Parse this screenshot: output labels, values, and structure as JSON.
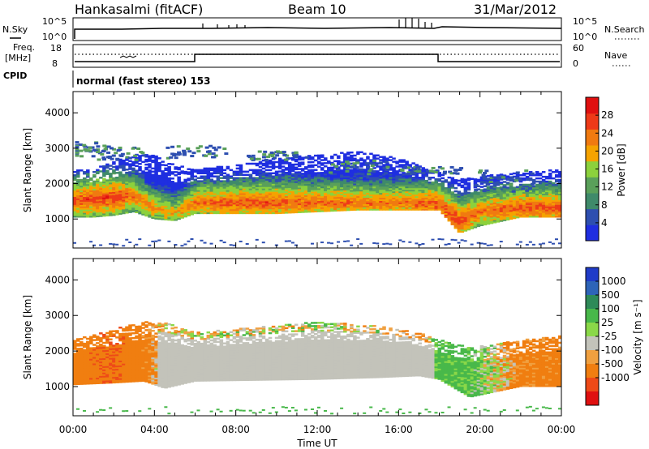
{
  "header": {
    "radar": "Hankasalmi (fitACF)",
    "beam": "Beam 10",
    "date": "31/Mar/2012"
  },
  "top_panels": {
    "nsky_label": "N.Sky",
    "nsky_ticks": [
      "10^5",
      "10^0"
    ],
    "nsearch_label": "N.Search",
    "nsearch_ticks": [
      "10^5",
      "10^0"
    ],
    "freq_label": "Freq.",
    "freq_unit": "[MHz]",
    "freq_ticks": [
      "18",
      "8"
    ],
    "nave_label": "Nave",
    "nave_ticks": [
      "60",
      "0"
    ],
    "cpid_label": "CPID",
    "cpid_text": "normal (fast stereo)  153"
  },
  "colors": {
    "power_scale": [
      "#1f2ee0",
      "#2e4fb0",
      "#3f8a6a",
      "#5aa05a",
      "#8cd13c",
      "#f5a300",
      "#f07a10",
      "#ee3a18",
      "#e01010"
    ],
    "velocity_scale": [
      "#203cc8",
      "#2e64b8",
      "#2e8a58",
      "#48b84a",
      "#8ad848",
      "#c3c3ba",
      "#f0a040",
      "#f07e10",
      "#ee4a18",
      "#e01010"
    ]
  },
  "chart_data": [
    {
      "type": "heatmap",
      "panel": "power",
      "xlabel": "Time UT",
      "ylabel": "Slant Range [km]",
      "x_ticks": [
        "00:00",
        "04:00",
        "08:00",
        "12:00",
        "16:00",
        "20:00",
        "00:00"
      ],
      "x_range_hours": [
        0,
        24
      ],
      "y_ticks": [
        1000,
        2000,
        3000,
        4000
      ],
      "y_range": [
        180,
        4600
      ],
      "colorbar_label": "Power [dB]",
      "colorbar_ticks": [
        4,
        8,
        12,
        16,
        20,
        24,
        28
      ],
      "colorbar_range": [
        0,
        32
      ],
      "echo_bands": [
        {
          "t": 0,
          "lo": 1050,
          "hi": 2400,
          "core": 1500,
          "power": 26
        },
        {
          "t": 1,
          "lo": 1050,
          "hi": 2400,
          "core": 1550,
          "power": 27
        },
        {
          "t": 2,
          "lo": 1100,
          "hi": 2600,
          "core": 1600,
          "power": 28
        },
        {
          "t": 3,
          "lo": 1200,
          "hi": 2800,
          "core": 1650,
          "power": 24
        },
        {
          "t": 4,
          "lo": 1000,
          "hi": 2800,
          "core": 1300,
          "power": 22
        },
        {
          "t": 5,
          "lo": 950,
          "hi": 2500,
          "core": 1150,
          "power": 20
        },
        {
          "t": 6,
          "lo": 1150,
          "hi": 2400,
          "core": 1450,
          "power": 24
        },
        {
          "t": 8,
          "lo": 1150,
          "hi": 2500,
          "core": 1450,
          "power": 26
        },
        {
          "t": 10,
          "lo": 1150,
          "hi": 2700,
          "core": 1450,
          "power": 26
        },
        {
          "t": 12,
          "lo": 1200,
          "hi": 2800,
          "core": 1450,
          "power": 25
        },
        {
          "t": 14,
          "lo": 1250,
          "hi": 2900,
          "core": 1450,
          "power": 24
        },
        {
          "t": 16,
          "lo": 1250,
          "hi": 2700,
          "core": 1450,
          "power": 24
        },
        {
          "t": 18,
          "lo": 1250,
          "hi": 2300,
          "core": 1400,
          "power": 26
        },
        {
          "t": 19,
          "lo": 600,
          "hi": 2100,
          "core": 900,
          "power": 28
        },
        {
          "t": 20,
          "lo": 800,
          "hi": 2200,
          "core": 1200,
          "power": 24
        },
        {
          "t": 22,
          "lo": 1050,
          "hi": 2300,
          "core": 1300,
          "power": 26
        },
        {
          "t": 24,
          "lo": 1050,
          "hi": 2400,
          "core": 1300,
          "power": 26
        }
      ],
      "upper_scatter": [
        {
          "t": 0.5,
          "lo": 2800,
          "hi": 3200
        },
        {
          "t": 2,
          "lo": 2700,
          "hi": 3100
        },
        {
          "t": 6,
          "lo": 2750,
          "hi": 3100
        },
        {
          "t": 10,
          "lo": 2700,
          "hi": 2950
        },
        {
          "t": 14,
          "lo": 2300,
          "hi": 2700
        },
        {
          "t": 17.5,
          "lo": 2300,
          "hi": 2500
        },
        {
          "t": 21,
          "lo": 1800,
          "hi": 2400
        }
      ]
    },
    {
      "type": "heatmap",
      "panel": "velocity",
      "xlabel": "Time UT",
      "ylabel": "Slant Range [km]",
      "x_ticks": [
        "00:00",
        "04:00",
        "08:00",
        "12:00",
        "16:00",
        "20:00",
        "00:00"
      ],
      "x_range_hours": [
        0,
        24
      ],
      "y_ticks": [
        1000,
        2000,
        3000,
        4000
      ],
      "y_range": [
        180,
        4600
      ],
      "colorbar_label": "Velocity [m s⁻¹]",
      "colorbar_ticks": [
        "1000",
        "500",
        "100",
        "25",
        "-25",
        "-100",
        "-500",
        "-1000"
      ],
      "echo_bands": [
        {
          "t": 0,
          "lo": 1050,
          "hi": 2300,
          "vel": -300
        },
        {
          "t": 2,
          "lo": 1100,
          "hi": 2600,
          "vel": -500
        },
        {
          "t": 3.5,
          "lo": 1150,
          "hi": 2800,
          "vel": -200
        },
        {
          "t": 4.5,
          "lo": 950,
          "hi": 2800,
          "vel": 0
        },
        {
          "t": 6,
          "lo": 1150,
          "hi": 2500,
          "vel": 0
        },
        {
          "t": 12,
          "lo": 1200,
          "hi": 2800,
          "vel": 0
        },
        {
          "t": 15,
          "lo": 1250,
          "hi": 2700,
          "vel": 0
        },
        {
          "t": 17,
          "lo": 1300,
          "hi": 2500,
          "vel": -150
        },
        {
          "t": 18,
          "lo": 1200,
          "hi": 2300,
          "vel": 200
        },
        {
          "t": 19.5,
          "lo": 700,
          "hi": 2100,
          "vel": 150
        },
        {
          "t": 22,
          "lo": 1000,
          "hi": 2300,
          "vel": -150
        },
        {
          "t": 24,
          "lo": 1000,
          "hi": 2400,
          "vel": -200
        }
      ]
    }
  ]
}
